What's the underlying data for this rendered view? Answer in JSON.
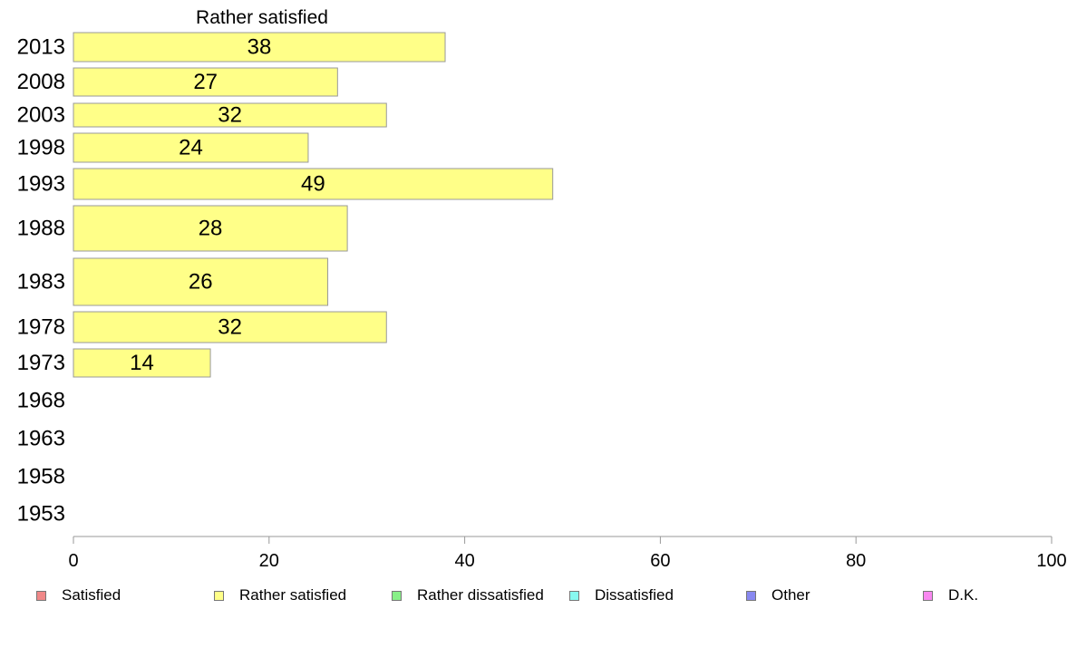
{
  "chart_data": {
    "type": "bar",
    "orientation": "horizontal",
    "title": "Rather satisfied",
    "categories": [
      "2013",
      "2008",
      "2003",
      "1998",
      "1993",
      "1988",
      "1983",
      "1978",
      "1973",
      "1968",
      "1963",
      "1958",
      "1953"
    ],
    "series": [
      {
        "name": "Rather satisfied",
        "values": [
          38,
          27,
          32,
          24,
          49,
          28,
          26,
          32,
          14,
          null,
          null,
          null,
          null
        ],
        "color": "#ffff88"
      }
    ],
    "xlim": [
      0,
      100
    ],
    "xticks": [
      0,
      20,
      40,
      60,
      80,
      100
    ],
    "xlabel": "",
    "ylabel": "",
    "grid": false,
    "legend": {
      "position": "bottom",
      "entries": [
        {
          "label": "Satisfied",
          "color": "#f08888"
        },
        {
          "label": "Rather satisfied",
          "color": "#ffff88"
        },
        {
          "label": "Rather dissatisfied",
          "color": "#88f088"
        },
        {
          "label": "Dissatisfied",
          "color": "#88f8f0"
        },
        {
          "label": "Other",
          "color": "#8888f0"
        },
        {
          "label": "D.K.",
          "color": "#f888f0"
        }
      ]
    }
  }
}
